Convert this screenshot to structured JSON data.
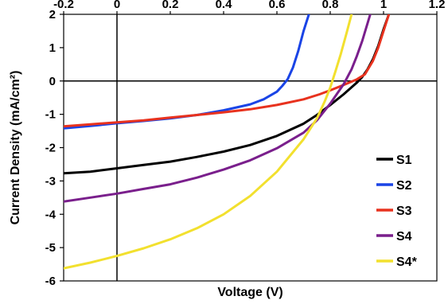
{
  "chart_data": {
    "type": "line",
    "title": "",
    "xlabel": "Voltage (V)",
    "ylabel": "Current Density (mA/cm²)",
    "xlim": [
      -0.2,
      1.2
    ],
    "ylim": [
      -6,
      2
    ],
    "x_ticks": [
      -0.2,
      0,
      0.2,
      0.4,
      0.6,
      0.8,
      1,
      1.2
    ],
    "x_tick_labels": [
      "-0.2",
      "0",
      "0.2",
      "0.4",
      "0.6",
      "0.8",
      "1",
      "1.2"
    ],
    "y_ticks": [
      -6,
      -5,
      -4,
      -3,
      -2,
      -1,
      0,
      1,
      2
    ],
    "y_tick_labels": [
      "-6",
      "-5",
      "-4",
      "-3",
      "-2",
      "-1",
      "0",
      "1",
      "2"
    ],
    "grid": false,
    "legend_position": "bottom-right",
    "series": [
      {
        "name": "S1",
        "color": "#000000",
        "points": [
          [
            -0.2,
            -2.77
          ],
          [
            -0.1,
            -2.72
          ],
          [
            0,
            -2.62
          ],
          [
            0.1,
            -2.52
          ],
          [
            0.2,
            -2.42
          ],
          [
            0.3,
            -2.28
          ],
          [
            0.4,
            -2.12
          ],
          [
            0.5,
            -1.92
          ],
          [
            0.6,
            -1.65
          ],
          [
            0.7,
            -1.28
          ],
          [
            0.75,
            -1.02
          ],
          [
            0.8,
            -0.72
          ],
          [
            0.85,
            -0.4
          ],
          [
            0.9,
            -0.05
          ],
          [
            0.92,
            0.12
          ],
          [
            0.94,
            0.35
          ],
          [
            0.96,
            0.65
          ],
          [
            0.98,
            1.05
          ],
          [
            1.0,
            1.55
          ],
          [
            1.02,
            2.0
          ]
        ]
      },
      {
        "name": "S2",
        "color": "#1a44e6",
        "points": [
          [
            -0.2,
            -1.42
          ],
          [
            -0.1,
            -1.35
          ],
          [
            0,
            -1.27
          ],
          [
            0.1,
            -1.2
          ],
          [
            0.2,
            -1.12
          ],
          [
            0.3,
            -1.02
          ],
          [
            0.4,
            -0.88
          ],
          [
            0.5,
            -0.7
          ],
          [
            0.55,
            -0.55
          ],
          [
            0.6,
            -0.32
          ],
          [
            0.62,
            -0.15
          ],
          [
            0.64,
            0.05
          ],
          [
            0.66,
            0.4
          ],
          [
            0.68,
            0.9
          ],
          [
            0.7,
            1.5
          ],
          [
            0.72,
            2.0
          ]
        ]
      },
      {
        "name": "S3",
        "color": "#e8321e",
        "points": [
          [
            -0.2,
            -1.36
          ],
          [
            -0.1,
            -1.3
          ],
          [
            0,
            -1.24
          ],
          [
            0.1,
            -1.18
          ],
          [
            0.2,
            -1.1
          ],
          [
            0.3,
            -1.02
          ],
          [
            0.4,
            -0.94
          ],
          [
            0.5,
            -0.85
          ],
          [
            0.6,
            -0.72
          ],
          [
            0.7,
            -0.55
          ],
          [
            0.76,
            -0.4
          ],
          [
            0.8,
            -0.28
          ],
          [
            0.85,
            -0.12
          ],
          [
            0.9,
            0.05
          ],
          [
            0.93,
            0.2
          ],
          [
            0.96,
            0.6
          ],
          [
            0.98,
            1.0
          ],
          [
            1.0,
            1.5
          ],
          [
            1.02,
            2.0
          ]
        ]
      },
      {
        "name": "S4",
        "color": "#7a1f8c",
        "points": [
          [
            -0.2,
            -3.62
          ],
          [
            -0.1,
            -3.5
          ],
          [
            0,
            -3.38
          ],
          [
            0.1,
            -3.24
          ],
          [
            0.2,
            -3.1
          ],
          [
            0.3,
            -2.9
          ],
          [
            0.4,
            -2.66
          ],
          [
            0.5,
            -2.38
          ],
          [
            0.6,
            -2.02
          ],
          [
            0.7,
            -1.55
          ],
          [
            0.75,
            -1.18
          ],
          [
            0.8,
            -0.68
          ],
          [
            0.85,
            -0.1
          ],
          [
            0.88,
            0.35
          ],
          [
            0.9,
            0.75
          ],
          [
            0.92,
            1.2
          ],
          [
            0.95,
            2.0
          ]
        ]
      },
      {
        "name": "S4*",
        "color": "#f2e02e",
        "points": [
          [
            -0.2,
            -5.62
          ],
          [
            -0.1,
            -5.45
          ],
          [
            0,
            -5.25
          ],
          [
            0.1,
            -5.02
          ],
          [
            0.2,
            -4.75
          ],
          [
            0.3,
            -4.42
          ],
          [
            0.4,
            -4.0
          ],
          [
            0.5,
            -3.45
          ],
          [
            0.6,
            -2.72
          ],
          [
            0.7,
            -1.75
          ],
          [
            0.75,
            -1.12
          ],
          [
            0.78,
            -0.6
          ],
          [
            0.8,
            -0.2
          ],
          [
            0.82,
            0.3
          ],
          [
            0.84,
            0.82
          ],
          [
            0.86,
            1.4
          ],
          [
            0.88,
            2.0
          ]
        ]
      }
    ]
  }
}
